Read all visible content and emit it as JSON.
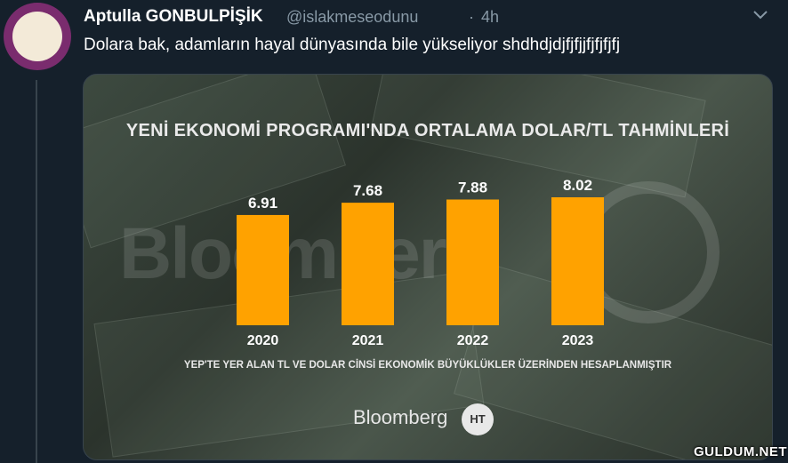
{
  "tweet": {
    "author_name": "Aptulla GONBULPİŞİK",
    "handle": "@islakmeseodunu",
    "separator": "·",
    "time": "4h",
    "text": "Dolara bak, adamların hayal dünyasında bile yükseliyor shdhdjdjfjfjjfjfjfjfj"
  },
  "media": {
    "watermark": "Bloomberg",
    "footnote": "YEP'TE YER ALAN TL VE DOLAR CİNSİ EKONOMİK BÜYÜKLÜKLER ÜZERİNDEN HESAPLANMIŞTIR",
    "brand": "Bloomberg",
    "brand_logo_text": "HT"
  },
  "site_tag": "GULDUM.NET",
  "colors": {
    "bar": "#ffa200",
    "background": "#15202b",
    "muted": "#8899a6"
  },
  "chart_data": {
    "type": "bar",
    "title": "YENİ EKONOMİ PROGRAMI'NDA ORTALAMA DOLAR/TL TAHMİNLERİ",
    "categories": [
      "2020",
      "2021",
      "2022",
      "2023"
    ],
    "values": [
      6.91,
      7.68,
      7.88,
      8.02
    ],
    "data_labels": [
      "6.91",
      "7.68",
      "7.88",
      "8.02"
    ],
    "xlabel": "",
    "ylabel": "",
    "grid": false,
    "legend": "none"
  }
}
